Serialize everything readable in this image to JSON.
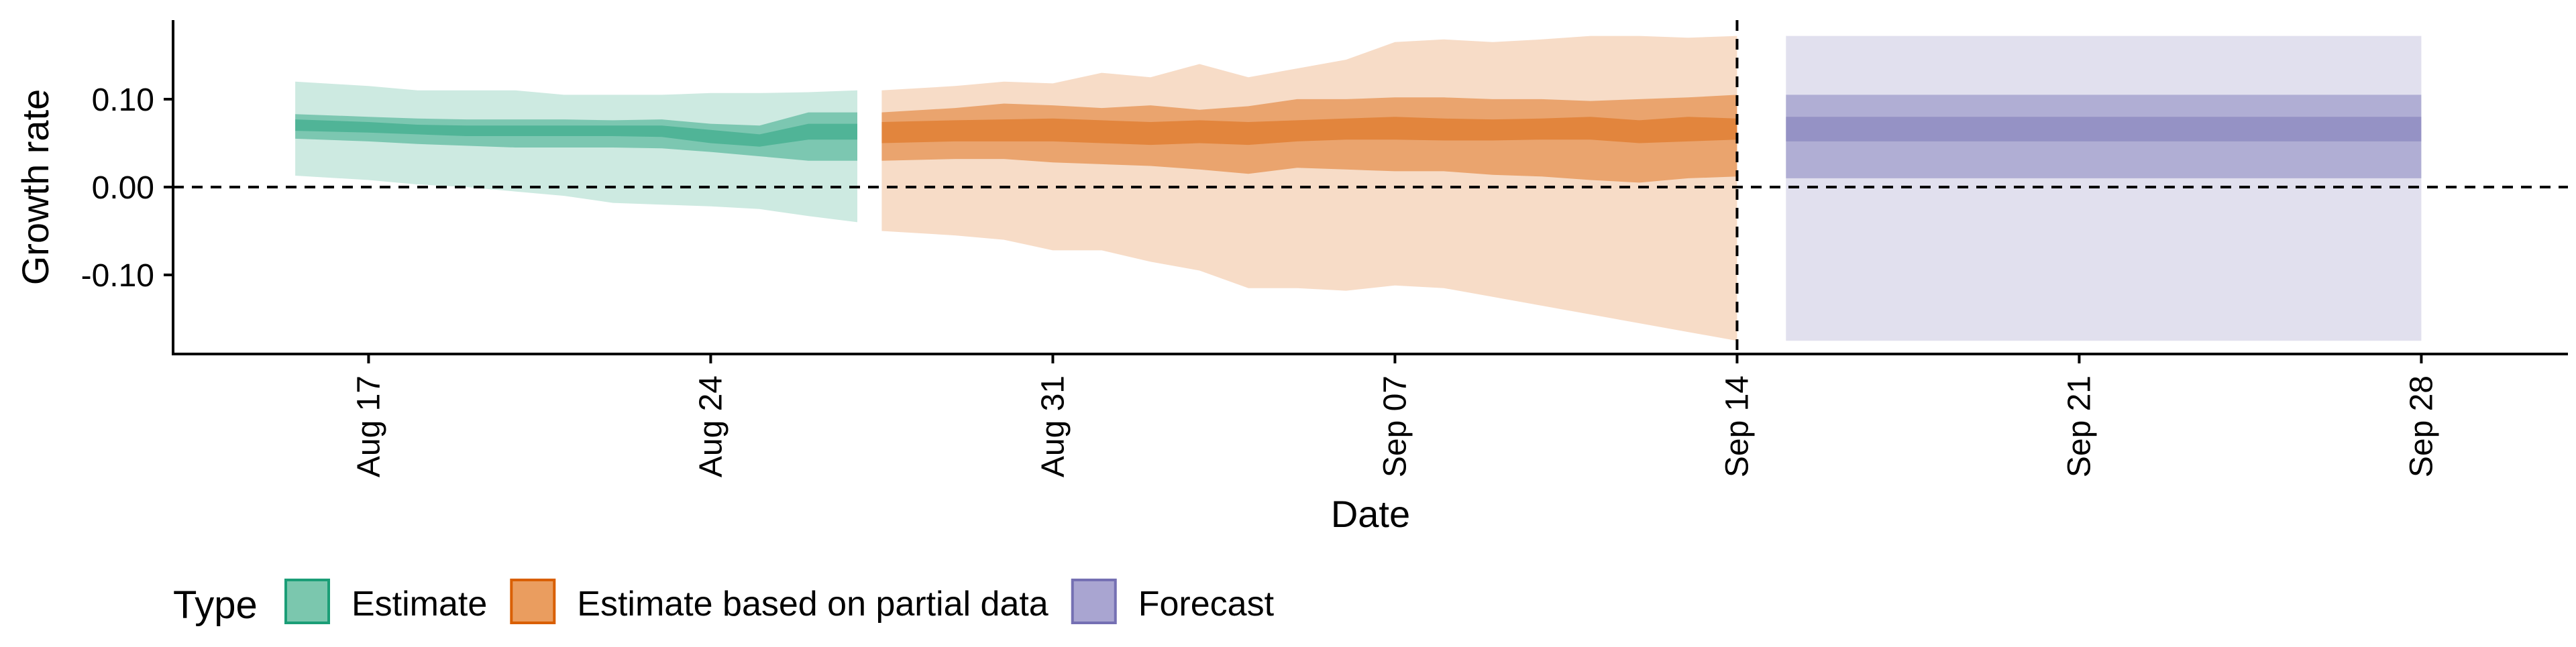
{
  "chart_data": {
    "type": "area",
    "xlabel": "Date",
    "ylabel": "Growth rate",
    "x_axis": {
      "type": "date",
      "range": [
        "2020-08-13",
        "2020-10-01"
      ],
      "ticks": [
        {
          "date": "2020-08-17",
          "label": "Aug 17"
        },
        {
          "date": "2020-08-24",
          "label": "Aug 24"
        },
        {
          "date": "2020-08-31",
          "label": "Aug 31"
        },
        {
          "date": "2020-09-07",
          "label": "Sep 07"
        },
        {
          "date": "2020-09-14",
          "label": "Sep 14"
        },
        {
          "date": "2020-09-21",
          "label": "Sep 21"
        },
        {
          "date": "2020-09-28",
          "label": "Sep 28"
        }
      ]
    },
    "y_axis": {
      "range": [
        -0.19,
        0.19
      ],
      "ticks": [
        {
          "value": 0.1,
          "label": "0.10"
        },
        {
          "value": 0.0,
          "label": "0.00"
        },
        {
          "value": -0.1,
          "label": "-0.10"
        }
      ]
    },
    "grid": false,
    "reference_lines": {
      "horizontal": [
        0.0
      ],
      "vertical_date": [
        "2020-09-14"
      ]
    },
    "legend": {
      "title": "Type",
      "position": "bottom-left",
      "entries": [
        {
          "label": "Estimate",
          "fill": "#7BC7AE",
          "stroke": "#1B9E77"
        },
        {
          "label": "Estimate based on partial data",
          "fill": "#EA9D5F",
          "stroke": "#D95F02"
        },
        {
          "label": "Forecast",
          "fill": "#A9A5D1",
          "stroke": "#7570B3"
        }
      ]
    },
    "series": [
      {
        "type_label": "Estimate",
        "color": "#1B9E77",
        "x": [
          "2020-08-16",
          "2020-08-17",
          "2020-08-18",
          "2020-08-19",
          "2020-08-20",
          "2020-08-21",
          "2020-08-22",
          "2020-08-23",
          "2020-08-24",
          "2020-08-25",
          "2020-08-26",
          "2020-08-27"
        ],
        "upper_90": [
          0.12,
          0.115,
          0.11,
          0.11,
          0.11,
          0.105,
          0.105,
          0.105,
          0.107,
          0.107,
          0.108,
          0.11
        ],
        "lower_90": [
          0.013,
          0.008,
          0.003,
          0.0,
          -0.005,
          -0.01,
          -0.018,
          -0.02,
          -0.022,
          -0.025,
          -0.033,
          -0.04
        ],
        "upper_50": [
          0.083,
          0.08,
          0.078,
          0.077,
          0.077,
          0.077,
          0.076,
          0.077,
          0.072,
          0.07,
          0.085,
          0.085
        ],
        "lower_50": [
          0.055,
          0.052,
          0.049,
          0.047,
          0.045,
          0.045,
          0.045,
          0.044,
          0.04,
          0.035,
          0.03,
          0.03
        ],
        "upper_20": [
          0.077,
          0.074,
          0.071,
          0.07,
          0.07,
          0.07,
          0.07,
          0.07,
          0.065,
          0.06,
          0.072,
          0.072
        ],
        "lower_20": [
          0.064,
          0.062,
          0.06,
          0.058,
          0.058,
          0.058,
          0.058,
          0.057,
          0.05,
          0.046,
          0.054,
          0.054
        ]
      },
      {
        "type_label": "Estimate based on partial data",
        "color": "#D95F02",
        "x": [
          "2020-08-28",
          "2020-08-29",
          "2020-08-30",
          "2020-08-31",
          "2020-09-01",
          "2020-09-02",
          "2020-09-03",
          "2020-09-04",
          "2020-09-05",
          "2020-09-06",
          "2020-09-07",
          "2020-09-08",
          "2020-09-09",
          "2020-09-10",
          "2020-09-11",
          "2020-09-12",
          "2020-09-13",
          "2020-09-14"
        ],
        "upper_90": [
          0.11,
          0.115,
          0.12,
          0.118,
          0.13,
          0.125,
          0.14,
          0.125,
          0.135,
          0.145,
          0.165,
          0.168,
          0.165,
          0.168,
          0.172,
          0.172,
          0.17,
          0.172
        ],
        "lower_90": [
          -0.05,
          -0.055,
          -0.06,
          -0.072,
          -0.072,
          -0.085,
          -0.095,
          -0.115,
          -0.115,
          -0.118,
          -0.112,
          -0.115,
          -0.125,
          -0.135,
          -0.145,
          -0.155,
          -0.165,
          -0.175
        ],
        "upper_50": [
          0.085,
          0.09,
          0.095,
          0.093,
          0.09,
          0.093,
          0.088,
          0.092,
          0.1,
          0.1,
          0.102,
          0.102,
          0.1,
          0.1,
          0.098,
          0.1,
          0.102,
          0.105
        ],
        "lower_50": [
          0.03,
          0.032,
          0.032,
          0.028,
          0.026,
          0.024,
          0.02,
          0.015,
          0.022,
          0.02,
          0.018,
          0.018,
          0.014,
          0.012,
          0.008,
          0.005,
          0.01,
          0.012
        ],
        "upper_20": [
          0.074,
          0.076,
          0.077,
          0.078,
          0.076,
          0.074,
          0.076,
          0.074,
          0.076,
          0.078,
          0.08,
          0.078,
          0.077,
          0.078,
          0.08,
          0.076,
          0.08,
          0.078
        ],
        "lower_20": [
          0.05,
          0.052,
          0.052,
          0.052,
          0.05,
          0.048,
          0.05,
          0.048,
          0.052,
          0.054,
          0.054,
          0.053,
          0.053,
          0.054,
          0.054,
          0.05,
          0.052,
          0.054
        ]
      },
      {
        "type_label": "Forecast",
        "color": "#7570B3",
        "x": [
          "2020-09-15",
          "2020-09-28"
        ],
        "upper_90": [
          0.172,
          0.172
        ],
        "lower_90": [
          -0.175,
          -0.175
        ],
        "upper_50": [
          0.105,
          0.105
        ],
        "lower_50": [
          0.01,
          0.01
        ],
        "upper_20": [
          0.08,
          0.08
        ],
        "lower_20": [
          0.052,
          0.052
        ]
      }
    ]
  }
}
